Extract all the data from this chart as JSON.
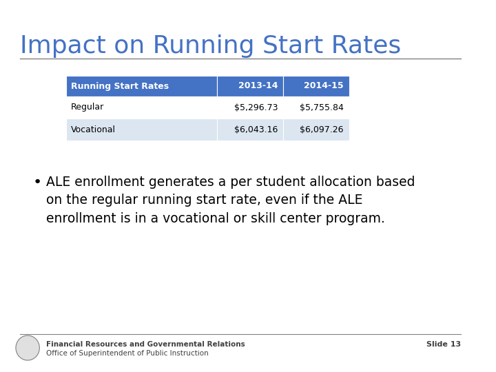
{
  "title": "Impact on Running Start Rates",
  "title_color": "#4472C4",
  "title_fontsize": 26,
  "bg_color": "#FFFFFF",
  "table_headers": [
    "Running Start Rates",
    "2013-14",
    "2014-15"
  ],
  "table_rows": [
    [
      "Regular",
      "$5,296.73",
      "$5,755.84"
    ],
    [
      "Vocational",
      "$6,043.16",
      "$6,097.26"
    ]
  ],
  "header_bg": "#4472C4",
  "header_fg": "#FFFFFF",
  "row1_bg": "#FFFFFF",
  "row2_bg": "#DCE6F1",
  "cell_text_color": "#000000",
  "bullet_text": "ALE enrollment generates a per student allocation based\non the regular running start rate, even if the ALE\nenrollment is in a vocational or skill center program.",
  "footer_line1": "Financial Resources and Governmental Relations",
  "footer_line2": "Office of Superintendent of Public Instruction",
  "footer_slide": "Slide 13",
  "footer_color": "#404040",
  "separator_color": "#808080"
}
